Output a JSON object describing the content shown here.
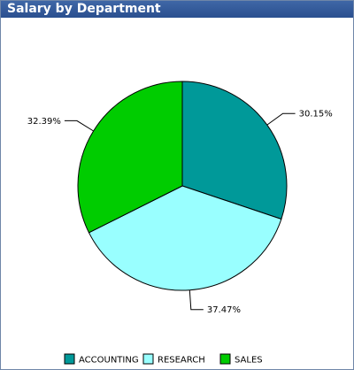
{
  "panel": {
    "title": "Salary by Department"
  },
  "chart_data": {
    "type": "pie",
    "title": "Salary by Department",
    "start_angle_deg": 0,
    "direction": "clockwise",
    "legend_position": "bottom",
    "slices": [
      {
        "label": "ACCOUNTING",
        "value": 30.15,
        "display": "30.15%",
        "color": "#009999"
      },
      {
        "label": "RESEARCH",
        "value": 37.47,
        "display": "37.47%",
        "color": "#99ffff"
      },
      {
        "label": "SALES",
        "value": 32.39,
        "display": "32.39%",
        "color": "#00cc00"
      }
    ]
  }
}
